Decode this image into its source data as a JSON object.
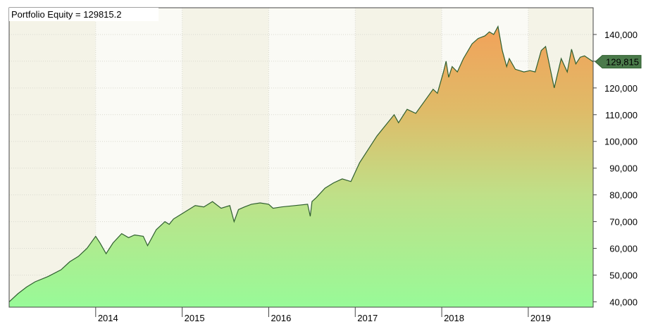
{
  "chart_data": {
    "type": "area",
    "title": "Portfolio Equity = 129815.2",
    "xlabel": "",
    "ylabel": "",
    "x_ticks": [
      "2014",
      "2015",
      "2016",
      "2017",
      "2018",
      "2019"
    ],
    "y_ticks": [
      40000,
      50000,
      60000,
      70000,
      80000,
      90000,
      100000,
      110000,
      120000,
      130000,
      140000
    ],
    "y_tick_labels": [
      "40,000",
      "50,000",
      "60,000",
      "70,000",
      "80,000",
      "90,000",
      "100,000",
      "110,000",
      "120,000",
      "130,000",
      "140,000"
    ],
    "xlim": [
      2013.0,
      2019.75
    ],
    "ylim": [
      38000,
      150000
    ],
    "grid": true,
    "last_value": 129815.2,
    "last_value_label": "129,815",
    "series": [
      {
        "x": [
          2013.0,
          2013.1,
          2013.2,
          2013.3,
          2013.45,
          2013.6,
          2013.7,
          2013.8,
          2013.9,
          2014.0,
          2014.05,
          2014.12,
          2014.2,
          2014.3,
          2014.38,
          2014.45,
          2014.55,
          2014.6,
          2014.7,
          2014.8,
          2014.85,
          2014.9,
          2014.95,
          2015.05,
          2015.15,
          2015.25,
          2015.35,
          2015.45,
          2015.55,
          2015.6,
          2015.65,
          2015.72,
          2015.8,
          2015.9,
          2016.0,
          2016.05,
          2016.15,
          2016.3,
          2016.45,
          2016.48,
          2016.5,
          2016.55,
          2016.65,
          2016.75,
          2016.85,
          2016.95,
          2017.05,
          2017.15,
          2017.25,
          2017.35,
          2017.45,
          2017.5,
          2017.6,
          2017.7,
          2017.8,
          2017.9,
          2017.95,
          2018.02,
          2018.05,
          2018.08,
          2018.12,
          2018.18,
          2018.25,
          2018.35,
          2018.42,
          2018.5,
          2018.55,
          2018.6,
          2018.65,
          2018.7,
          2018.75,
          2018.78,
          2018.85,
          2018.95,
          2019.02,
          2019.08,
          2019.15,
          2019.2,
          2019.3,
          2019.38,
          2019.45,
          2019.5,
          2019.55,
          2019.6,
          2019.65,
          2019.75
        ],
        "values": [
          40000,
          43000,
          45500,
          47500,
          49500,
          52000,
          55000,
          57000,
          60000,
          64500,
          62000,
          58000,
          62000,
          65500,
          64000,
          65000,
          64500,
          61000,
          67000,
          70000,
          69000,
          71000,
          72000,
          74000,
          76000,
          75500,
          77500,
          75000,
          76000,
          70000,
          74500,
          75500,
          76500,
          77000,
          76500,
          75000,
          75500,
          76000,
          76500,
          72000,
          77500,
          79000,
          82500,
          84500,
          86000,
          85000,
          92000,
          97000,
          102000,
          106000,
          110000,
          107000,
          112000,
          110500,
          115000,
          119500,
          118000,
          126000,
          130000,
          124000,
          128000,
          126000,
          131000,
          136500,
          138500,
          139500,
          141000,
          140000,
          143000,
          134000,
          128000,
          131000,
          127000,
          126000,
          126500,
          126000,
          134000,
          135500,
          120000,
          131000,
          126000,
          134500,
          129000,
          131500,
          132000,
          129815
        ]
      }
    ]
  }
}
